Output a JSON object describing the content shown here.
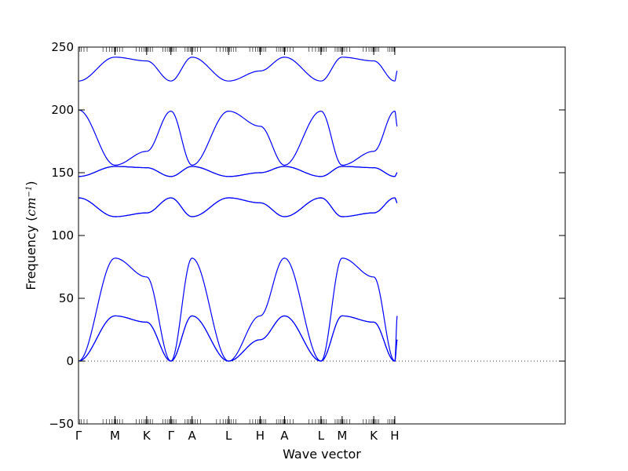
{
  "chart_data": {
    "type": "line",
    "title": "",
    "xlabel": "Wave vector",
    "ylabel": "Frequency",
    "ylabel_unit": "cm",
    "ylabel_unit_exponent": "−1",
    "ylim": [
      -50,
      250
    ],
    "yticks": [
      -50,
      0,
      50,
      100,
      150,
      200,
      250
    ],
    "grid": false,
    "legend": "none",
    "line_color": "#0000ff",
    "zero_line": {
      "y": 0,
      "style": "dotted"
    },
    "x_domain": [
      0,
      5.455
    ],
    "path_points": [
      {
        "label": "Γ",
        "x": 0
      },
      {
        "label": "M",
        "x": 0.409
      },
      {
        "label": "K",
        "x": 0.764
      },
      {
        "label": "Γ",
        "x": 1.036
      },
      {
        "label": "A",
        "x": 1.273
      },
      {
        "label": "L",
        "x": 1.682
      },
      {
        "label": "H",
        "x": 2.036
      },
      {
        "label": "A",
        "x": 2.309
      },
      {
        "label": "L",
        "x": 2.718
      },
      {
        "label": "M",
        "x": 2.955
      },
      {
        "label": "K",
        "x": 3.309
      },
      {
        "label": "H",
        "x": 3.545
      }
    ],
    "series_note": "x in path coordinate; values are band frequencies",
    "series": [
      {
        "values": [
          [
            0,
            0
          ],
          [
            0.409,
            36
          ],
          [
            0.764,
            31
          ],
          [
            1.036,
            0
          ],
          [
            1.273,
            36
          ],
          [
            1.682,
            0
          ],
          [
            2.036,
            17
          ],
          [
            2.309,
            36
          ],
          [
            2.718,
            0
          ],
          [
            2.955,
            36
          ],
          [
            3.309,
            31
          ],
          [
            3.545,
            0
          ],
          [
            3.573,
            17
          ]
        ]
      },
      {
        "values": [
          [
            0,
            0
          ],
          [
            0.409,
            36
          ],
          [
            0.764,
            31
          ],
          [
            1.036,
            0
          ],
          [
            1.273,
            36
          ],
          [
            1.682,
            0
          ],
          [
            2.036,
            17
          ],
          [
            2.309,
            36
          ],
          [
            2.718,
            0
          ],
          [
            2.955,
            36
          ],
          [
            3.309,
            31
          ],
          [
            3.545,
            0
          ],
          [
            3.573,
            17
          ]
        ]
      },
      {
        "values": [
          [
            0,
            0
          ],
          [
            0.409,
            82
          ],
          [
            0.764,
            67
          ],
          [
            1.036,
            0
          ],
          [
            1.273,
            82
          ],
          [
            1.682,
            0
          ],
          [
            2.036,
            36
          ],
          [
            2.309,
            82
          ],
          [
            2.718,
            0
          ],
          [
            2.955,
            82
          ],
          [
            3.309,
            67
          ],
          [
            3.545,
            0
          ],
          [
            3.573,
            36
          ]
        ]
      },
      {
        "values": [
          [
            0,
            130
          ],
          [
            0.409,
            115
          ],
          [
            0.764,
            118
          ],
          [
            1.036,
            130
          ],
          [
            1.273,
            115
          ],
          [
            1.682,
            130
          ],
          [
            2.036,
            126
          ],
          [
            2.309,
            115
          ],
          [
            2.718,
            130
          ],
          [
            2.955,
            115
          ],
          [
            3.309,
            118
          ],
          [
            3.545,
            130
          ],
          [
            3.573,
            126
          ]
        ]
      },
      {
        "values": [
          [
            0,
            130
          ],
          [
            0.409,
            115
          ],
          [
            0.764,
            118
          ],
          [
            1.036,
            130
          ],
          [
            1.273,
            115
          ],
          [
            1.682,
            130
          ],
          [
            2.036,
            126
          ],
          [
            2.309,
            115
          ],
          [
            2.718,
            130
          ],
          [
            2.955,
            115
          ],
          [
            3.309,
            118
          ],
          [
            3.545,
            130
          ],
          [
            3.573,
            126
          ]
        ]
      },
      {
        "values": [
          [
            0,
            147
          ],
          [
            0.409,
            155
          ],
          [
            0.764,
            154
          ],
          [
            1.036,
            147
          ],
          [
            1.273,
            155
          ],
          [
            1.682,
            147
          ],
          [
            2.036,
            150
          ],
          [
            2.309,
            155
          ],
          [
            2.718,
            147
          ],
          [
            2.955,
            155
          ],
          [
            3.309,
            154
          ],
          [
            3.545,
            147
          ],
          [
            3.573,
            150
          ]
        ]
      },
      {
        "values": [
          [
            0,
            147
          ],
          [
            0.409,
            155
          ],
          [
            0.764,
            154
          ],
          [
            1.036,
            147
          ],
          [
            1.273,
            155
          ],
          [
            1.682,
            147
          ],
          [
            2.036,
            150
          ],
          [
            2.309,
            155
          ],
          [
            2.718,
            147
          ],
          [
            2.955,
            155
          ],
          [
            3.309,
            154
          ],
          [
            3.545,
            147
          ],
          [
            3.573,
            150
          ]
        ]
      },
      {
        "values": [
          [
            0,
            200
          ],
          [
            0.409,
            156
          ],
          [
            0.764,
            167
          ],
          [
            1.036,
            199
          ],
          [
            1.273,
            156
          ],
          [
            1.682,
            199
          ],
          [
            2.036,
            187
          ],
          [
            2.309,
            156
          ],
          [
            2.718,
            199
          ],
          [
            2.955,
            156
          ],
          [
            3.309,
            167
          ],
          [
            3.545,
            199
          ],
          [
            3.573,
            187
          ]
        ]
      },
      {
        "values": [
          [
            0,
            223
          ],
          [
            0.409,
            242
          ],
          [
            0.764,
            239
          ],
          [
            1.036,
            223
          ],
          [
            1.273,
            242
          ],
          [
            1.682,
            223
          ],
          [
            2.036,
            231
          ],
          [
            2.309,
            242
          ],
          [
            2.718,
            223
          ],
          [
            2.955,
            242
          ],
          [
            3.309,
            239
          ],
          [
            3.545,
            223
          ],
          [
            3.573,
            231
          ]
        ]
      }
    ]
  }
}
